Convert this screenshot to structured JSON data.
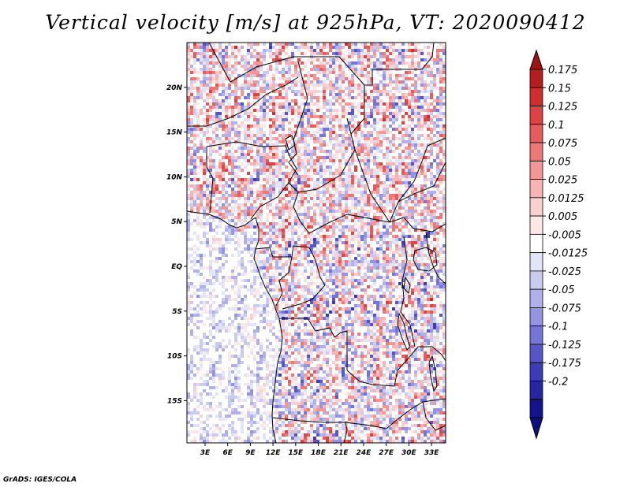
{
  "title": "Vertical velocity [m/s] at 925hPa, VT: 2020090412",
  "credit": "GrADS: IGES/COLA",
  "lat_labels": [
    "20N",
    "15N",
    "10N",
    "5N",
    "EQ",
    "5S",
    "10S",
    "15S"
  ],
  "lat_values": [
    20,
    15,
    10,
    5,
    0,
    -5,
    -10,
    -15
  ],
  "lon_labels": [
    "3E",
    "6E",
    "9E",
    "12E",
    "15E",
    "18E",
    "21E",
    "24E",
    "27E",
    "30E",
    "33E"
  ],
  "lon_values": [
    3,
    6,
    9,
    12,
    15,
    18,
    21,
    24,
    27,
    30,
    33
  ],
  "colorbar_labels": [
    "0.175",
    "0.15",
    "0.125",
    "0.1",
    "0.075",
    "0.05",
    "0.025",
    "0.0125",
    "0.005",
    "-0.005",
    "-0.0125",
    "-0.025",
    "-0.05",
    "-0.075",
    "-0.1",
    "-0.125",
    "-0.175",
    "-0.2"
  ],
  "colorbar_colors": [
    "#b41e1e",
    "#cd2e2e",
    "#dc4444",
    "#e55c5c",
    "#ec7878",
    "#f29696",
    "#f6b4b4",
    "#f9d0d0",
    "#fde8e8",
    "#ffffff",
    "#e4e4f8",
    "#cbcbf1",
    "#b0b0ea",
    "#9494e2",
    "#7575d7",
    "#5656c9",
    "#3c3cb7",
    "#2626a0",
    "#14148a"
  ],
  "colorbar_top_color": "#a01414",
  "colorbar_bottom_color": "#10107a"
}
